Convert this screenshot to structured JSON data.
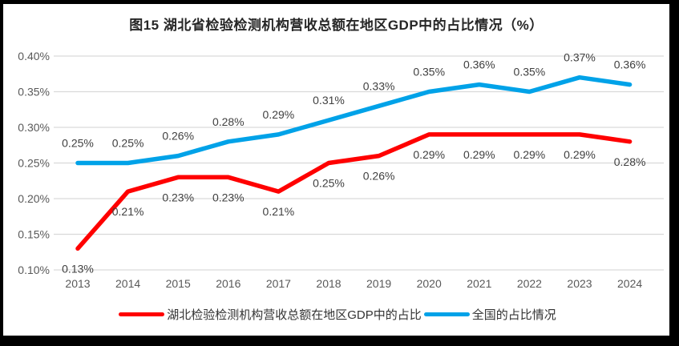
{
  "title": "图15  湖北省检验检测机构营收总额在地区GDP中的占比情况（%）",
  "colors": {
    "grid": "#D9D9D9",
    "axis_text": "#595959",
    "data_label_text": "#404040",
    "title_text": "#262626",
    "background": "#FFFFFF",
    "border": "#000000"
  },
  "chart_data": {
    "type": "line",
    "title": "图15  湖北省检验检测机构营收总额在地区GDP中的占比情况（%）",
    "categories": [
      "2013",
      "2014",
      "2015",
      "2016",
      "2017",
      "2018",
      "2019",
      "2020",
      "2021",
      "2022",
      "2023",
      "2024"
    ],
    "series": [
      {
        "name": "湖北检验检测机构营收总额在地区GDP中的占比",
        "color": "#FF0000",
        "values_pct": [
          0.13,
          0.21,
          0.23,
          0.23,
          0.21,
          0.25,
          0.26,
          0.29,
          0.29,
          0.29,
          0.29,
          0.28
        ],
        "labels": [
          "0.13%",
          "0.21%",
          "0.23%",
          "0.23%",
          "0.21%",
          "0.25%",
          "0.26%",
          "0.29%",
          "0.29%",
          "0.29%",
          "0.29%",
          "0.28%"
        ],
        "label_side": "below"
      },
      {
        "name": "全国的占比情况",
        "color": "#00A2E8",
        "values_pct": [
          0.25,
          0.25,
          0.26,
          0.28,
          0.29,
          0.31,
          0.33,
          0.35,
          0.36,
          0.35,
          0.37,
          0.36
        ],
        "labels": [
          "0.25%",
          "0.25%",
          "0.26%",
          "0.28%",
          "0.29%",
          "0.31%",
          "0.33%",
          "0.35%",
          "0.36%",
          "0.35%",
          "0.37%",
          "0.36%"
        ],
        "label_side": "above"
      }
    ],
    "xlabel": "",
    "ylabel": "",
    "ylim_pct": [
      0.1,
      0.4
    ],
    "ytick_step_pct": 0.05,
    "ytick_labels": [
      "0.10%",
      "0.15%",
      "0.20%",
      "0.25%",
      "0.30%",
      "0.35%",
      "0.40%"
    ],
    "grid": true,
    "data_labels": true,
    "legend_position": "bottom"
  }
}
